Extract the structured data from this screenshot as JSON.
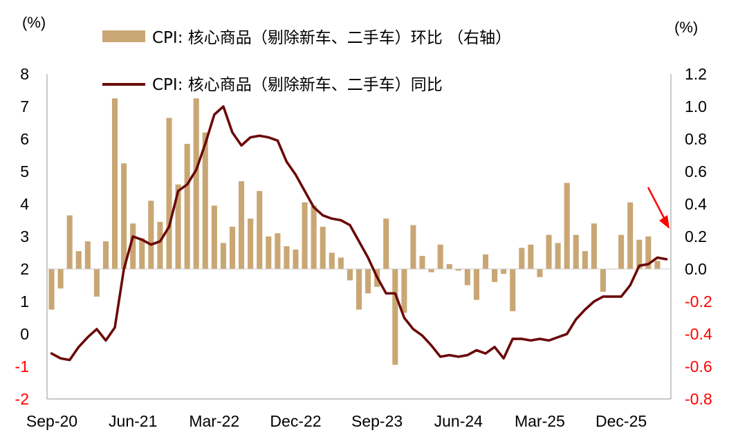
{
  "chart_data": {
    "type": "bar+line",
    "left_axis": {
      "unit": "(%)",
      "ticks": [
        "8",
        "7",
        "6",
        "5",
        "4",
        "3",
        "2",
        "1",
        "0",
        "-1",
        "-2"
      ],
      "range": [
        -2,
        8
      ]
    },
    "right_axis": {
      "unit": "(%)",
      "ticks": [
        "1.2",
        "1.0",
        "0.8",
        "0.6",
        "0.4",
        "0.2",
        "0.0",
        "-0.2",
        "-0.4",
        "-0.6",
        "-0.8"
      ],
      "range": [
        -0.8,
        1.2
      ]
    },
    "x_tick_labels": [
      "Sep-20",
      "Jun-21",
      "Mar-22",
      "Dec-22",
      "Sep-23",
      "Jun-24",
      "Mar-25",
      "Dec-25"
    ],
    "colors": {
      "bar": "#c9a774",
      "line": "#6b0a0a",
      "negative_tick": "#ff0000",
      "arrow": "#ff0000"
    },
    "series": [
      {
        "name": "CPI: 核心商品（剔除新车、二手车）环比 （右轴）",
        "chart": "bar",
        "axis": "right",
        "values": [
          -0.25,
          -0.12,
          0.33,
          0.11,
          0.17,
          -0.17,
          0.17,
          1.05,
          0.65,
          0.28,
          0.19,
          0.42,
          0.29,
          0.93,
          0.52,
          0.77,
          1.05,
          0.84,
          0.39,
          0.16,
          0.26,
          0.54,
          0.31,
          0.48,
          0.2,
          0.22,
          0.14,
          0.12,
          0.41,
          0.39,
          0.26,
          0.1,
          0.07,
          -0.07,
          -0.25,
          -0.15,
          -0.11,
          0.31,
          -0.59,
          -0.27,
          0.27,
          0.08,
          -0.02,
          0.15,
          0.03,
          -0.01,
          -0.1,
          -0.19,
          0.09,
          -0.08,
          -0.03,
          -0.26,
          0.13,
          0.15,
          -0.05,
          0.21,
          0.16,
          0.53,
          0.21,
          0.11,
          0.28,
          -0.14,
          0.0,
          0.21,
          0.41,
          0.18,
          0.2,
          0.05
        ]
      },
      {
        "name": "CPI: 核心商品（剔除新车、二手车）同比",
        "chart": "line",
        "axis": "right",
        "values": [
          -0.52,
          -0.55,
          -0.56,
          -0.48,
          -0.42,
          -0.37,
          -0.44,
          -0.36,
          0.0,
          0.2,
          0.18,
          0.15,
          0.17,
          0.26,
          0.48,
          0.52,
          0.61,
          0.77,
          0.95,
          1.0,
          0.84,
          0.76,
          0.81,
          0.82,
          0.81,
          0.79,
          0.66,
          0.58,
          0.48,
          0.38,
          0.33,
          0.31,
          0.3,
          0.27,
          0.17,
          0.07,
          -0.05,
          -0.15,
          -0.15,
          -0.3,
          -0.37,
          -0.41,
          -0.47,
          -0.54,
          -0.53,
          -0.54,
          -0.53,
          -0.5,
          -0.52,
          -0.48,
          -0.55,
          -0.43,
          -0.43,
          -0.44,
          -0.43,
          -0.44,
          -0.42,
          -0.4,
          -0.31,
          -0.25,
          -0.2,
          -0.17,
          -0.17,
          -0.17,
          -0.1,
          0.02,
          0.03,
          0.07,
          0.06
        ]
      }
    ],
    "legend_placement": "top-center",
    "annotation": "red arrow pointing to latest value on right axis"
  }
}
